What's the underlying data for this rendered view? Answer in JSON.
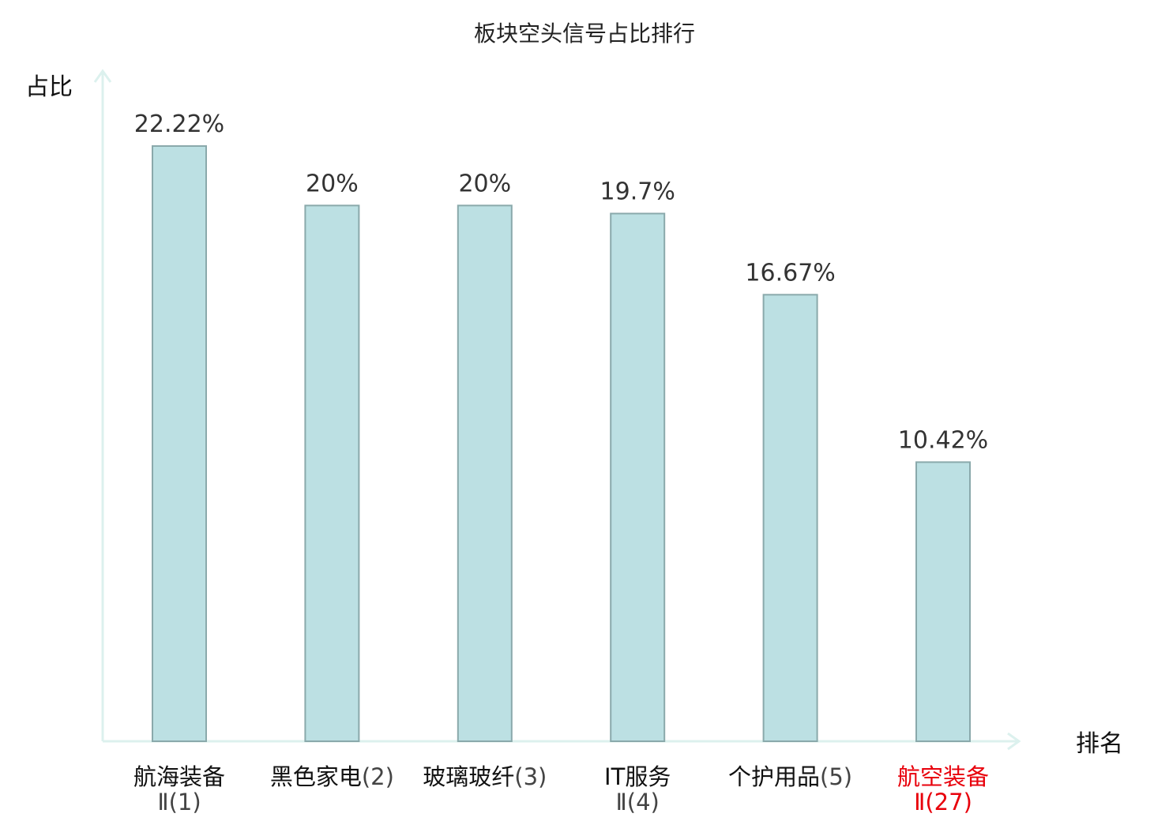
{
  "chart_data": {
    "type": "bar",
    "title": "板块空头信号占比排行",
    "ylabel": "占比",
    "xlabel": "排名",
    "ylim": [
      0,
      25
    ],
    "grid": false,
    "categories": [
      {
        "name": "航海装备",
        "rank_text": "Ⅱ(1)",
        "highlight": false
      },
      {
        "name": "黑色家电",
        "rank_text": "(2)",
        "highlight": false
      },
      {
        "name": "玻璃玻纤",
        "rank_text": "(3)",
        "highlight": false
      },
      {
        "name": "IT服务",
        "rank_text": "Ⅱ(4)",
        "highlight": false
      },
      {
        "name": "个护用品",
        "rank_text": "(5)",
        "highlight": false
      },
      {
        "name": "航空装备",
        "rank_text": "Ⅱ(27)",
        "highlight": true
      }
    ],
    "values": [
      22.22,
      20,
      20,
      19.7,
      16.67,
      10.42
    ],
    "value_labels": [
      "22.22%",
      "20%",
      "20%",
      "19.7%",
      "16.67%",
      "10.42%"
    ]
  },
  "colors": {
    "bar_fill": "#bce0e3",
    "bar_stroke": "#8aa9ab",
    "axis": "#dcf1ee",
    "highlight_text": "#e8000b"
  }
}
